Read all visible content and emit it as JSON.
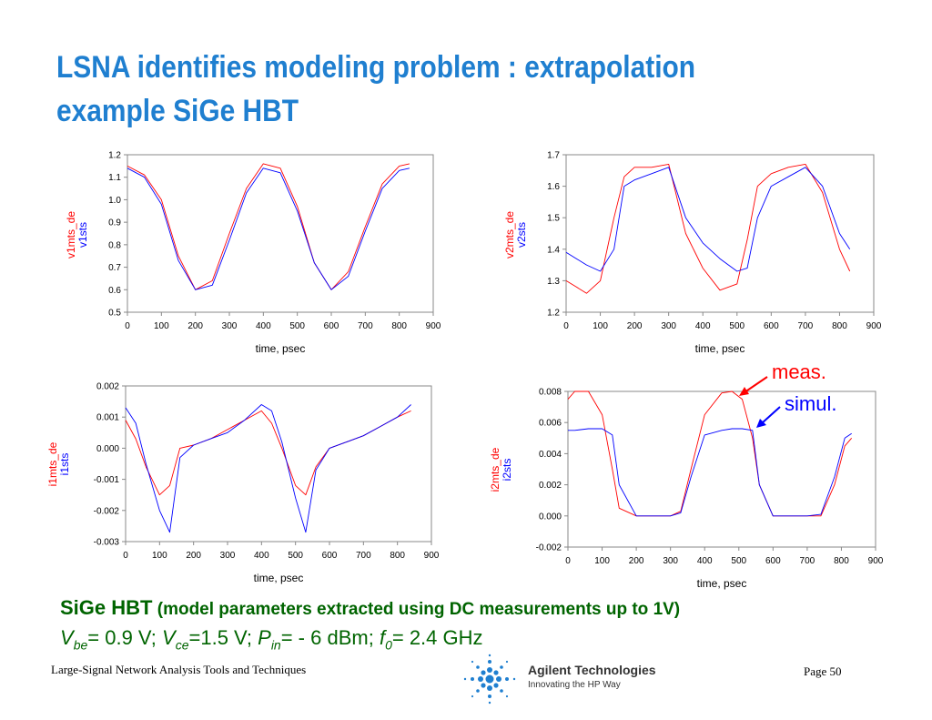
{
  "slide": {
    "title": "LSNA identifies modeling problem : extrapolation example SiGe HBT",
    "params_line1_bold": "SiGe HBT",
    "params_line1_rest": " (model parameters extracted using DC measurements up to 1V)",
    "params": {
      "vbe_sym": "V",
      "vbe_sub": "be",
      "vbe_val": "= 0.9 V; ",
      "vce_sym": "V",
      "vce_sub": "ce",
      "vce_val": "=1.5 V; ",
      "pin_sym": "P",
      "pin_sub": "in",
      "pin_val": "= - 6 dBm; ",
      "f0_sym": "f",
      "f0_sub": "0",
      "f0_val": "= 2.4 GHz"
    },
    "footer_left": "Large-Signal Network Analysis Tools and Techniques",
    "footer_right": "Page 50",
    "logo_name": "Agilent Technologies",
    "logo_tagline": "Innovating the HP Way",
    "annotations": {
      "meas": "meas.",
      "simul": "simul."
    },
    "colors": {
      "title": "#1f7fd0",
      "measured": "#ff0000",
      "simulated": "#0000ff",
      "params_text": "#006400"
    }
  },
  "chart_data": [
    {
      "type": "line",
      "xlabel": "time, psec",
      "ylabel_red": "v1mts_de",
      "ylabel_blue": "v1sts",
      "xlim": [
        0,
        900
      ],
      "ylim": [
        0.5,
        1.2
      ],
      "xticks": [
        "0",
        "100",
        "200",
        "300",
        "400",
        "500",
        "600",
        "700",
        "800",
        "900"
      ],
      "yticks": [
        "0.5",
        "0.6",
        "0.7",
        "0.8",
        "0.9",
        "1.0",
        "1.1",
        "1.2"
      ],
      "series": [
        {
          "name": "v1mts_de",
          "color": "#ff0000",
          "x": [
            0,
            50,
            100,
            150,
            200,
            250,
            300,
            350,
            400,
            450,
            500,
            550,
            600,
            650,
            700,
            750,
            800,
            830
          ],
          "y": [
            1.15,
            1.11,
            1.0,
            0.75,
            0.6,
            0.64,
            0.85,
            1.05,
            1.16,
            1.14,
            0.97,
            0.72,
            0.6,
            0.68,
            0.88,
            1.07,
            1.15,
            1.16
          ]
        },
        {
          "name": "v1sts",
          "color": "#0000ff",
          "x": [
            0,
            50,
            100,
            150,
            200,
            250,
            300,
            350,
            400,
            450,
            500,
            550,
            600,
            650,
            700,
            750,
            800,
            830
          ],
          "y": [
            1.14,
            1.1,
            0.98,
            0.73,
            0.6,
            0.62,
            0.82,
            1.03,
            1.14,
            1.12,
            0.95,
            0.72,
            0.6,
            0.66,
            0.86,
            1.05,
            1.13,
            1.14
          ]
        }
      ]
    },
    {
      "type": "line",
      "xlabel": "time, psec",
      "ylabel_red": "v2mts_de",
      "ylabel_blue": "v2sts",
      "xlim": [
        0,
        900
      ],
      "ylim": [
        1.2,
        1.7
      ],
      "xticks": [
        "0",
        "100",
        "200",
        "300",
        "400",
        "500",
        "600",
        "700",
        "800",
        "900"
      ],
      "yticks": [
        "1.2",
        "1.3",
        "1.4",
        "1.5",
        "1.6",
        "1.7"
      ],
      "series": [
        {
          "name": "v2mts_de",
          "color": "#ff0000",
          "x": [
            0,
            30,
            60,
            100,
            140,
            170,
            200,
            250,
            300,
            350,
            400,
            450,
            500,
            530,
            560,
            600,
            650,
            700,
            750,
            800,
            830
          ],
          "y": [
            1.3,
            1.28,
            1.26,
            1.3,
            1.5,
            1.63,
            1.66,
            1.66,
            1.67,
            1.45,
            1.34,
            1.27,
            1.29,
            1.43,
            1.6,
            1.64,
            1.66,
            1.67,
            1.58,
            1.4,
            1.33
          ]
        },
        {
          "name": "v2sts",
          "color": "#0000ff",
          "x": [
            0,
            30,
            60,
            100,
            140,
            170,
            200,
            250,
            300,
            350,
            400,
            450,
            500,
            530,
            560,
            600,
            650,
            700,
            750,
            800,
            830
          ],
          "y": [
            1.39,
            1.37,
            1.35,
            1.33,
            1.4,
            1.6,
            1.62,
            1.64,
            1.66,
            1.5,
            1.42,
            1.37,
            1.33,
            1.34,
            1.5,
            1.6,
            1.63,
            1.66,
            1.6,
            1.45,
            1.4
          ]
        }
      ]
    },
    {
      "type": "line",
      "xlabel": "time, psec",
      "ylabel_red": "i1mts_de",
      "ylabel_blue": "i1sts",
      "xlim": [
        0,
        900
      ],
      "ylim": [
        -0.003,
        0.002
      ],
      "xticks": [
        "0",
        "100",
        "200",
        "300",
        "400",
        "500",
        "600",
        "700",
        "800",
        "900"
      ],
      "yticks": [
        "-0.003",
        "-0.002",
        "-0.001",
        "0.000",
        "0.001",
        "0.002"
      ],
      "series": [
        {
          "name": "i1mts_de",
          "color": "#ff0000",
          "x": [
            0,
            30,
            60,
            100,
            130,
            160,
            200,
            250,
            300,
            350,
            400,
            430,
            460,
            500,
            530,
            560,
            600,
            650,
            700,
            750,
            800,
            840
          ],
          "y": [
            0.0009,
            0.0003,
            -0.0006,
            -0.0015,
            -0.0012,
            0.0,
            0.0001,
            0.0003,
            0.0006,
            0.0009,
            0.0012,
            0.0008,
            0.0,
            -0.0012,
            -0.0015,
            -0.0006,
            0.0,
            0.0002,
            0.0004,
            0.0007,
            0.001,
            0.0012
          ]
        },
        {
          "name": "i1sts",
          "color": "#0000ff",
          "x": [
            0,
            30,
            60,
            100,
            130,
            160,
            200,
            250,
            300,
            350,
            400,
            430,
            460,
            500,
            530,
            560,
            600,
            650,
            700,
            750,
            800,
            840
          ],
          "y": [
            0.0013,
            0.0008,
            -0.0005,
            -0.002,
            -0.0027,
            -0.0003,
            0.0001,
            0.0003,
            0.0005,
            0.0009,
            0.0014,
            0.0012,
            0.0002,
            -0.0016,
            -0.0027,
            -0.0007,
            0.0,
            0.0002,
            0.0004,
            0.0007,
            0.001,
            0.0014
          ]
        }
      ]
    },
    {
      "type": "line",
      "xlabel": "time, psec",
      "ylabel_red": "i2mts_de",
      "ylabel_blue": "i2sts",
      "xlim": [
        0,
        900
      ],
      "ylim": [
        -0.002,
        0.008
      ],
      "xticks": [
        "0",
        "100",
        "200",
        "300",
        "400",
        "500",
        "600",
        "700",
        "800",
        "900"
      ],
      "yticks": [
        "-0.002",
        "0.000",
        "0.002",
        "0.004",
        "0.006",
        "0.008"
      ],
      "series": [
        {
          "name": "i2mts_de",
          "color": "#ff0000",
          "x": [
            0,
            20,
            60,
            100,
            130,
            150,
            200,
            300,
            330,
            360,
            400,
            450,
            480,
            510,
            540,
            560,
            600,
            700,
            740,
            780,
            810,
            830
          ],
          "y": [
            0.0075,
            0.008,
            0.008,
            0.0065,
            0.003,
            0.0005,
            0.0,
            0.0,
            0.0003,
            0.003,
            0.0065,
            0.0079,
            0.008,
            0.0075,
            0.005,
            0.002,
            0.0,
            0.0,
            0.0,
            0.002,
            0.0045,
            0.005
          ]
        },
        {
          "name": "i2sts",
          "color": "#0000ff",
          "x": [
            0,
            20,
            60,
            100,
            130,
            150,
            200,
            300,
            330,
            360,
            400,
            450,
            480,
            510,
            540,
            560,
            600,
            700,
            740,
            780,
            810,
            830
          ],
          "y": [
            0.0055,
            0.0055,
            0.0056,
            0.0056,
            0.0052,
            0.002,
            0.0,
            0.0,
            0.0002,
            0.0025,
            0.0052,
            0.0055,
            0.0056,
            0.0056,
            0.0055,
            0.002,
            0.0,
            0.0,
            0.0001,
            0.0025,
            0.005,
            0.0053
          ]
        }
      ]
    }
  ]
}
